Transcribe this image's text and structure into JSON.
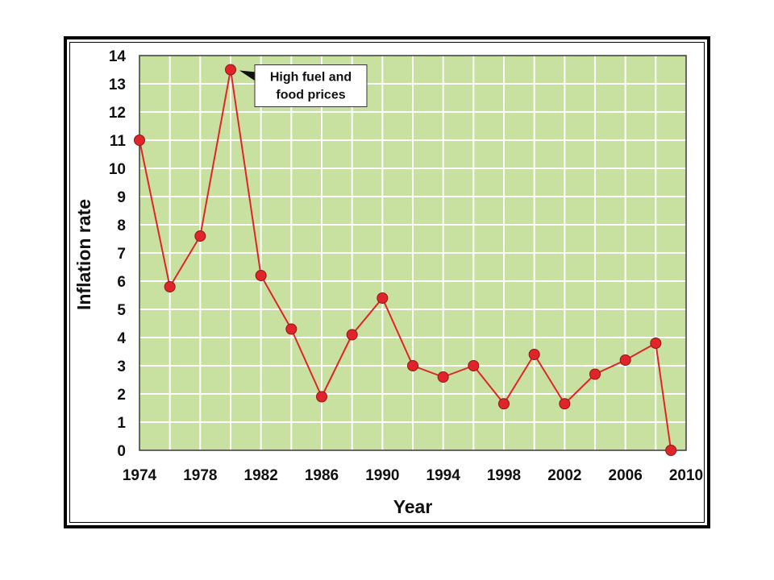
{
  "chart_data": {
    "type": "line",
    "title": "",
    "xlabel": "Year",
    "ylabel": "Inflation rate",
    "xlim": [
      1974,
      2010
    ],
    "ylim": [
      0,
      14
    ],
    "grid": true,
    "x_ticks": [
      "1974",
      "1978",
      "1982",
      "1986",
      "1990",
      "1994",
      "1998",
      "2002",
      "2006",
      "2010"
    ],
    "y_ticks": [
      "0",
      "1",
      "2",
      "3",
      "4",
      "5",
      "6",
      "7",
      "8",
      "9",
      "10",
      "11",
      "12",
      "13",
      "14"
    ],
    "x_tick_values": [
      1974,
      1978,
      1982,
      1986,
      1990,
      1994,
      1998,
      2002,
      2006,
      2010
    ],
    "y_tick_values": [
      0,
      1,
      2,
      3,
      4,
      5,
      6,
      7,
      8,
      9,
      10,
      11,
      12,
      13,
      14
    ],
    "series": [
      {
        "x": [
          1974,
          1976,
          1978,
          1980,
          1982,
          1984,
          1986,
          1988,
          1990,
          1992,
          1994,
          1996,
          1998,
          2000,
          2002,
          2004,
          2006,
          2008,
          2009
        ],
        "values": [
          11,
          5.8,
          7.6,
          13.5,
          6.2,
          4.3,
          1.9,
          4.1,
          5.4,
          3.0,
          2.6,
          3.0,
          1.65,
          3.4,
          1.65,
          2.7,
          3.2,
          3.8,
          0
        ]
      }
    ],
    "annotations": [
      {
        "x": 1980,
        "y": 13.5,
        "text_lines": [
          "High fuel and",
          "food prices"
        ]
      }
    ],
    "colors": {
      "plot_background": "#c8e0a0",
      "grid": "#ffffff",
      "line": "#e0242a",
      "marker": "#e0242a",
      "marker_outline": "#8a1a1a",
      "plot_border": "#3a3a3a"
    }
  }
}
